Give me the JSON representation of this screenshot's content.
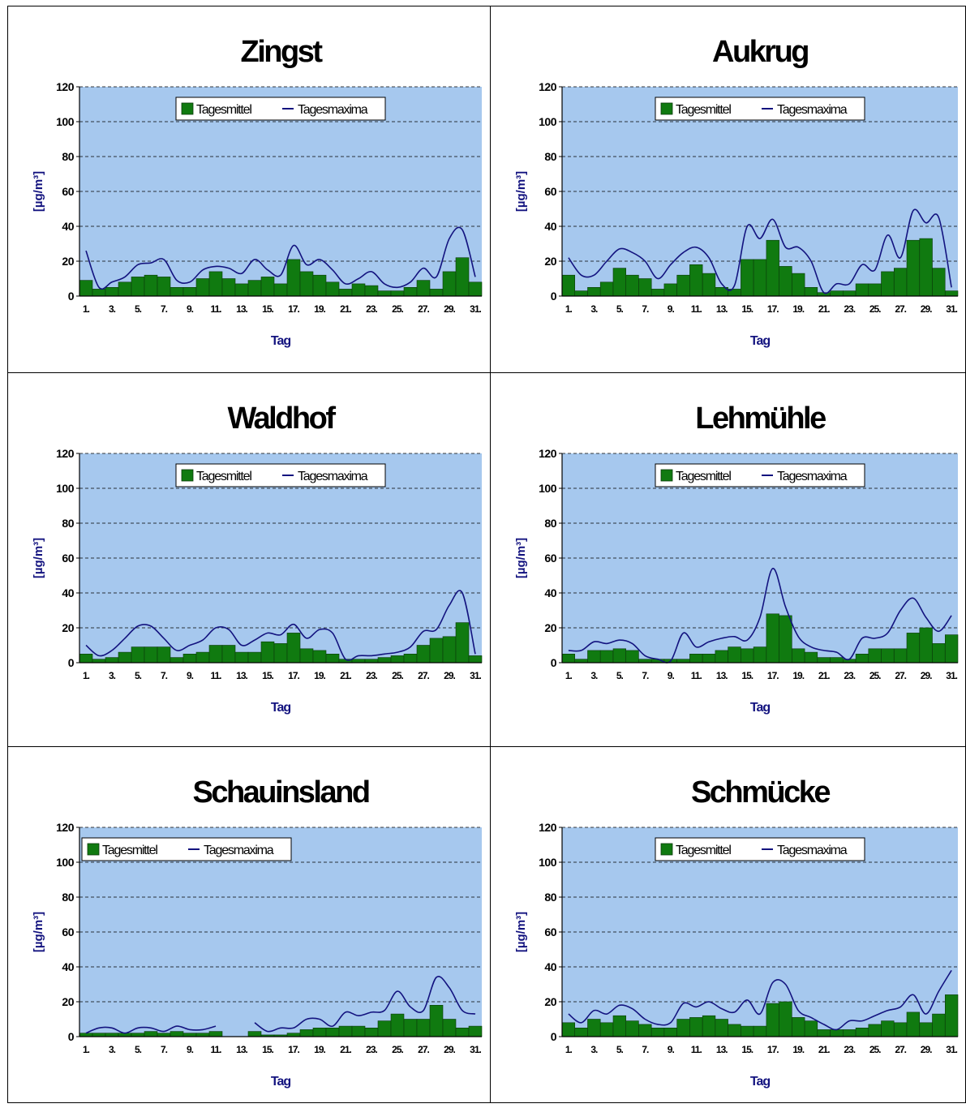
{
  "y_axis_label": "[µg/m³]",
  "x_axis_label": "Tag",
  "legend": {
    "mean": "Tagesmittel",
    "max": "Tagesmaxima"
  },
  "colors": {
    "plot_bg": "#a6c8ee",
    "bar": "#107a10",
    "bar_edge": "#0a3a0a",
    "line": "#13137f",
    "grid": "#000000",
    "axis_title": "#13137f"
  },
  "chart_data": [
    {
      "type": "bar",
      "title": "Zingst",
      "xlabel": "Tag",
      "ylabel": "[µg/m³]",
      "ylim": [
        0,
        120
      ],
      "yticks": [
        0,
        20,
        40,
        60,
        80,
        100,
        120
      ],
      "categories": [
        "1.",
        "2.",
        "3.",
        "4.",
        "5.",
        "6.",
        "7.",
        "8.",
        "9.",
        "10.",
        "11.",
        "12.",
        "13.",
        "14.",
        "15.",
        "16.",
        "17.",
        "18.",
        "19.",
        "20.",
        "21.",
        "22.",
        "23.",
        "24.",
        "25.",
        "26.",
        "27.",
        "28.",
        "29.",
        "30.",
        "31."
      ],
      "tick_labels": [
        "1.",
        "3.",
        "5.",
        "7.",
        "9.",
        "11.",
        "13.",
        "15.",
        "17.",
        "19.",
        "21.",
        "23.",
        "25.",
        "27.",
        "29.",
        "31."
      ],
      "legend_position": "top-center",
      "series": [
        {
          "name": "Tagesmittel",
          "type": "bar",
          "values": [
            9,
            4,
            5,
            8,
            11,
            12,
            11,
            5,
            5,
            10,
            14,
            10,
            7,
            9,
            11,
            7,
            21,
            14,
            12,
            8,
            4,
            7,
            6,
            3,
            3,
            5,
            9,
            4,
            14,
            22,
            8
          ]
        },
        {
          "name": "Tagesmaxima",
          "type": "line",
          "values": [
            26,
            5,
            8,
            11,
            18,
            19,
            21,
            9,
            8,
            15,
            17,
            16,
            13,
            21,
            15,
            12,
            29,
            18,
            21,
            15,
            7,
            10,
            14,
            7,
            5,
            8,
            16,
            11,
            33,
            38,
            11
          ]
        }
      ]
    },
    {
      "type": "bar",
      "title": "Aukrug",
      "xlabel": "Tag",
      "ylabel": "[µg/m³]",
      "ylim": [
        0,
        120
      ],
      "yticks": [
        0,
        20,
        40,
        60,
        80,
        100,
        120
      ],
      "categories": [
        "1.",
        "2.",
        "3.",
        "4.",
        "5.",
        "6.",
        "7.",
        "8.",
        "9.",
        "10.",
        "11.",
        "12.",
        "13.",
        "14.",
        "15.",
        "16.",
        "17.",
        "18.",
        "19.",
        "20.",
        "21.",
        "22.",
        "23.",
        "24.",
        "25.",
        "26.",
        "27.",
        "28.",
        "29.",
        "30.",
        "31."
      ],
      "tick_labels": [
        "1.",
        "3.",
        "5.",
        "7.",
        "9.",
        "11.",
        "13.",
        "15.",
        "17.",
        "19.",
        "21.",
        "23.",
        "25.",
        "27.",
        "29.",
        "31."
      ],
      "legend_position": "top-center",
      "series": [
        {
          "name": "Tagesmittel",
          "type": "bar",
          "values": [
            12,
            3,
            5,
            8,
            16,
            12,
            10,
            4,
            7,
            12,
            18,
            13,
            5,
            4,
            21,
            21,
            32,
            17,
            13,
            5,
            2,
            3,
            3,
            7,
            7,
            14,
            16,
            32,
            33,
            16,
            3
          ]
        },
        {
          "name": "Tagesmaxima",
          "type": "line",
          "values": [
            22,
            12,
            12,
            20,
            27,
            25,
            20,
            10,
            18,
            25,
            28,
            22,
            7,
            6,
            40,
            33,
            44,
            28,
            28,
            20,
            2,
            7,
            7,
            18,
            15,
            35,
            22,
            49,
            42,
            45,
            5
          ]
        }
      ]
    },
    {
      "type": "bar",
      "title": "Waldhof",
      "xlabel": "Tag",
      "ylabel": "[µg/m³]",
      "ylim": [
        0,
        120
      ],
      "yticks": [
        0,
        20,
        40,
        60,
        80,
        100,
        120
      ],
      "categories": [
        "1.",
        "2.",
        "3.",
        "4.",
        "5.",
        "6.",
        "7.",
        "8.",
        "9.",
        "10.",
        "11.",
        "12.",
        "13.",
        "14.",
        "15.",
        "16.",
        "17.",
        "18.",
        "19.",
        "20.",
        "21.",
        "22.",
        "23.",
        "24.",
        "25.",
        "26.",
        "27.",
        "28.",
        "29.",
        "30.",
        "31."
      ],
      "tick_labels": [
        "1.",
        "3.",
        "5.",
        "7.",
        "9.",
        "11.",
        "13.",
        "15.",
        "17.",
        "19.",
        "21.",
        "23.",
        "25.",
        "27.",
        "29.",
        "31."
      ],
      "legend_position": "top-center",
      "series": [
        {
          "name": "Tagesmittel",
          "type": "bar",
          "values": [
            5,
            2,
            3,
            6,
            9,
            9,
            9,
            3,
            5,
            6,
            10,
            10,
            6,
            6,
            12,
            11,
            17,
            8,
            7,
            5,
            2,
            2,
            2,
            3,
            4,
            5,
            10,
            14,
            15,
            23,
            4
          ]
        },
        {
          "name": "Tagesmaxima",
          "type": "line",
          "values": [
            10,
            4,
            7,
            14,
            21,
            21,
            14,
            7,
            10,
            13,
            20,
            19,
            10,
            13,
            17,
            16,
            22,
            14,
            19,
            17,
            2,
            4,
            4,
            5,
            6,
            9,
            18,
            19,
            33,
            40,
            5
          ]
        }
      ]
    },
    {
      "type": "bar",
      "title": "Lehmühle",
      "xlabel": "Tag",
      "ylabel": "[µg/m³]",
      "ylim": [
        0,
        120
      ],
      "yticks": [
        0,
        20,
        40,
        60,
        80,
        100,
        120
      ],
      "categories": [
        "1.",
        "2.",
        "3.",
        "4.",
        "5.",
        "6.",
        "7.",
        "8.",
        "9.",
        "10.",
        "11.",
        "12.",
        "13.",
        "14.",
        "15.",
        "16.",
        "17.",
        "18.",
        "19.",
        "20.",
        "21.",
        "22.",
        "23.",
        "24.",
        "25.",
        "26.",
        "27.",
        "28.",
        "29.",
        "30.",
        "31."
      ],
      "tick_labels": [
        "1.",
        "3.",
        "5.",
        "7.",
        "9.",
        "11.",
        "13.",
        "15.",
        "17.",
        "19.",
        "21.",
        "23.",
        "25.",
        "27.",
        "29.",
        "31."
      ],
      "legend_position": "top-center",
      "series": [
        {
          "name": "Tagesmittel",
          "type": "bar",
          "values": [
            5,
            2,
            7,
            7,
            8,
            7,
            2,
            2,
            2,
            2,
            5,
            5,
            7,
            9,
            8,
            9,
            28,
            27,
            8,
            6,
            3,
            3,
            2,
            5,
            8,
            8,
            8,
            17,
            20,
            11,
            16
          ]
        },
        {
          "name": "Tagesmaxima",
          "type": "line",
          "values": [
            7,
            7,
            12,
            11,
            13,
            11,
            4,
            2,
            1,
            17,
            9,
            12,
            14,
            15,
            13,
            26,
            54,
            32,
            15,
            9,
            7,
            6,
            2,
            14,
            14,
            17,
            30,
            37,
            26,
            18,
            27
          ]
        }
      ]
    },
    {
      "type": "bar",
      "title": "Schauinsland",
      "xlabel": "Tag",
      "ylabel": "[µg/m³]",
      "ylim": [
        0,
        120
      ],
      "yticks": [
        0,
        20,
        40,
        60,
        80,
        100,
        120
      ],
      "categories": [
        "1.",
        "2.",
        "3.",
        "4.",
        "5.",
        "6.",
        "7.",
        "8.",
        "9.",
        "10.",
        "11.",
        "12.",
        "13.",
        "14.",
        "15.",
        "16.",
        "17.",
        "18.",
        "19.",
        "20.",
        "21.",
        "22.",
        "23.",
        "24.",
        "25.",
        "26.",
        "27.",
        "28.",
        "29.",
        "30.",
        "31."
      ],
      "tick_labels": [
        "1.",
        "3.",
        "5.",
        "7.",
        "9.",
        "11.",
        "13.",
        "15.",
        "17.",
        "19.",
        "21.",
        "23.",
        "25.",
        "27.",
        "29.",
        "31."
      ],
      "legend_position": "top-left",
      "series": [
        {
          "name": "Tagesmittel",
          "type": "bar",
          "values": [
            2,
            2,
            2,
            2,
            2,
            3,
            2,
            3,
            2,
            2,
            3,
            null,
            null,
            3,
            1,
            1,
            2,
            4,
            5,
            5,
            6,
            6,
            5,
            9,
            13,
            10,
            10,
            18,
            10,
            5,
            6
          ]
        },
        {
          "name": "Tagesmaxima",
          "type": "line",
          "values": [
            2,
            5,
            5,
            2,
            5,
            5,
            3,
            6,
            4,
            4,
            6,
            null,
            null,
            8,
            3,
            5,
            5,
            10,
            10,
            6,
            14,
            12,
            14,
            15,
            26,
            17,
            15,
            34,
            28,
            15,
            13
          ]
        }
      ]
    },
    {
      "type": "bar",
      "title": "Schmücke",
      "xlabel": "Tag",
      "ylabel": "[µg/m³]",
      "ylim": [
        0,
        120
      ],
      "yticks": [
        0,
        20,
        40,
        60,
        80,
        100,
        120
      ],
      "categories": [
        "1.",
        "2.",
        "3.",
        "4.",
        "5.",
        "6.",
        "7.",
        "8.",
        "9.",
        "10.",
        "11.",
        "12.",
        "13.",
        "14.",
        "15.",
        "16.",
        "17.",
        "18.",
        "19.",
        "20.",
        "21.",
        "22.",
        "23.",
        "24.",
        "25.",
        "26.",
        "27.",
        "28.",
        "29.",
        "30.",
        "31."
      ],
      "tick_labels": [
        "1.",
        "3.",
        "5.",
        "7.",
        "9.",
        "11.",
        "13.",
        "15.",
        "17.",
        "19.",
        "21.",
        "23.",
        "25.",
        "27.",
        "29.",
        "31."
      ],
      "legend_position": "top-center",
      "series": [
        {
          "name": "Tagesmittel",
          "type": "bar",
          "values": [
            8,
            5,
            10,
            8,
            12,
            9,
            7,
            5,
            5,
            10,
            11,
            12,
            10,
            7,
            6,
            6,
            19,
            20,
            11,
            9,
            4,
            4,
            4,
            5,
            7,
            9,
            8,
            14,
            8,
            13,
            24
          ]
        },
        {
          "name": "Tagesmaxima",
          "type": "line",
          "values": [
            13,
            8,
            15,
            13,
            18,
            16,
            10,
            7,
            8,
            19,
            17,
            20,
            16,
            14,
            21,
            13,
            31,
            30,
            15,
            11,
            7,
            4,
            9,
            9,
            12,
            15,
            17,
            24,
            13,
            26,
            38
          ]
        }
      ]
    }
  ]
}
